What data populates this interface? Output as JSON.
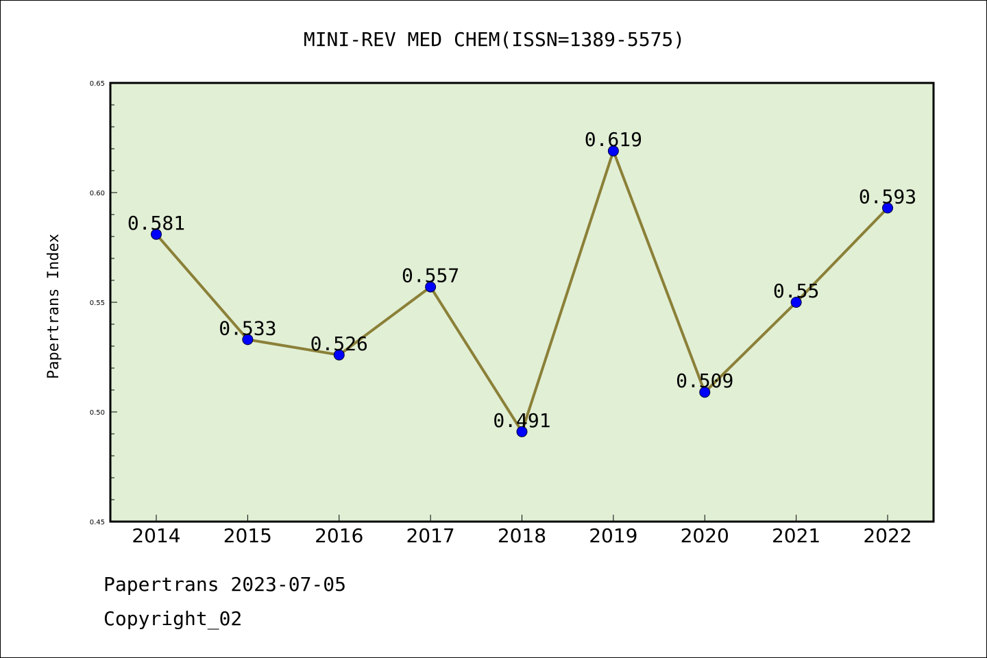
{
  "colors": {
    "plot_background": "#e1efd5",
    "line": "#8b8038",
    "marker_fill": "#0000ff",
    "marker_stroke": "#000033",
    "frame": "#000000"
  },
  "chart_data": {
    "type": "line",
    "title": "MINI-REV MED CHEM(ISSN=1389-5575)",
    "xlabel": "",
    "ylabel": "Papertrans Index",
    "categories": [
      "2014",
      "2015",
      "2016",
      "2017",
      "2018",
      "2019",
      "2020",
      "2021",
      "2022"
    ],
    "series": [
      {
        "values": [
          0.581,
          0.533,
          0.526,
          0.557,
          0.491,
          0.619,
          0.509,
          0.55,
          0.593
        ],
        "data_labels": [
          "0.581",
          "0.533",
          "0.526",
          "0.557",
          "0.491",
          "0.619",
          "0.509",
          "0.55",
          "0.593"
        ]
      }
    ],
    "ylim": [
      0.45,
      0.65
    ],
    "yticks": [
      0.45,
      0.5,
      0.55,
      0.6,
      0.65
    ],
    "ytick_labels": [
      "0.45",
      "0.50",
      "0.55",
      "0.60",
      "0.65"
    ],
    "grid": false,
    "legend": "none"
  },
  "footer": {
    "line1": "Papertrans 2023-07-05",
    "line2": "Copyright_02"
  }
}
